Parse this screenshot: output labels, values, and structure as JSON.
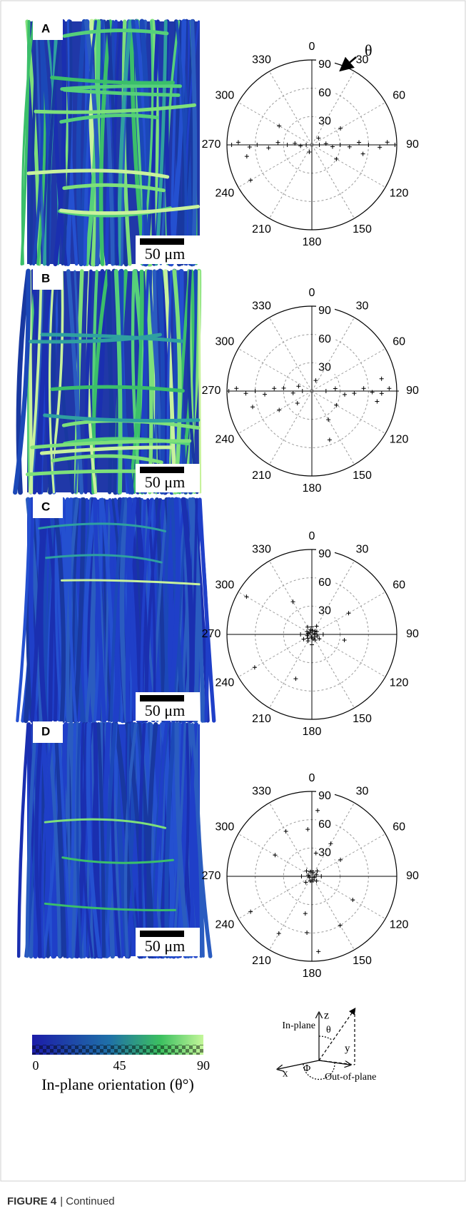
{
  "figure": {
    "panels": [
      {
        "label": "A",
        "scale_bar": "50 μm",
        "polar": {
          "type": "polar-scatter",
          "angle_ticks": [
            0,
            30,
            60,
            90,
            120,
            150,
            180,
            210,
            240,
            270,
            300,
            330
          ],
          "radial_ticks": [
            30,
            60,
            90
          ],
          "rlim": [
            0,
            90
          ],
          "points": {
            "angle": [
              90,
              88,
              92,
              90,
              87,
              93,
              90,
              95,
              85,
              90,
              270,
              272,
              268,
              270,
              266,
              274,
              270,
              275,
              265,
              270,
              240,
              100,
              260,
              300,
              60,
              120,
              45,
              200
            ],
            "radius": [
              88,
              80,
              72,
              60,
              50,
              40,
              30,
              22,
              15,
              8,
              85,
              78,
              66,
              58,
              46,
              36,
              26,
              18,
              12,
              6,
              75,
              55,
              70,
              40,
              35,
              30,
              10,
              8
            ]
          },
          "annotation": "θ"
        }
      },
      {
        "label": "B",
        "scale_bar": "50 μm",
        "polar": {
          "type": "polar-scatter",
          "angle_ticks": [
            0,
            30,
            60,
            90,
            120,
            150,
            180,
            210,
            240,
            270,
            300,
            330
          ],
          "radial_ticks": [
            30,
            60,
            90
          ],
          "rlim": [
            0,
            90
          ],
          "points": {
            "angle": [
              90,
              88,
              92,
              91,
              87,
              93,
              96,
              84,
              90,
              99,
              270,
              272,
              268,
              270,
              266,
              274,
              276,
              264,
              270,
              255,
              240,
              160,
              230,
              290,
              80,
              120,
              150,
              20
            ],
            "radius": [
              90,
              82,
              74,
              64,
              55,
              45,
              35,
              25,
              15,
              70,
              88,
              80,
              70,
              60,
              50,
              40,
              30,
              20,
              10,
              65,
              40,
              55,
              20,
              15,
              75,
              30,
              35,
              12
            ]
          }
        }
      },
      {
        "label": "C",
        "scale_bar": "50 μm",
        "polar": {
          "type": "polar-scatter",
          "angle_ticks": [
            0,
            30,
            60,
            90,
            120,
            150,
            180,
            210,
            240,
            270,
            300,
            330
          ],
          "radial_ticks": [
            30,
            60,
            90
          ],
          "rlim": [
            0,
            90
          ],
          "points": {
            "angle": [
              0,
              30,
              60,
              90,
              120,
              150,
              180,
              210,
              240,
              270,
              300,
              330,
              15,
              45,
              75,
              105,
              135,
              165,
              195,
              225,
              255,
              285,
              315,
              345,
              300,
              240,
              330,
              60,
              100,
              200
            ],
            "radius": [
              8,
              10,
              6,
              12,
              9,
              7,
              11,
              8,
              10,
              12,
              6,
              9,
              4,
              5,
              3,
              6,
              4,
              5,
              3,
              6,
              5,
              4,
              3,
              5,
              80,
              70,
              40,
              45,
              35,
              50
            ]
          }
        }
      },
      {
        "label": "D",
        "scale_bar": "50 μm",
        "polar": {
          "type": "polar-scatter",
          "angle_ticks": [
            0,
            30,
            60,
            90,
            120,
            150,
            180,
            210,
            240,
            270,
            300,
            330
          ],
          "radial_ticks": [
            30,
            60,
            90
          ],
          "rlim": [
            0,
            90
          ],
          "points": {
            "angle": [
              0,
              45,
              90,
              135,
              180,
              225,
              270,
              315,
              20,
              70,
              110,
              160,
              200,
              250,
              290,
              340,
              5,
              185,
              175,
              355,
              150,
              210,
              330,
              30,
              240,
              300,
              120,
              60,
              190,
              10
            ],
            "radius": [
              6,
              8,
              10,
              7,
              6,
              9,
              11,
              8,
              4,
              5,
              3,
              4,
              5,
              3,
              4,
              5,
              70,
              60,
              80,
              50,
              60,
              70,
              55,
              40,
              75,
              45,
              50,
              35,
              40,
              25
            ]
          }
        }
      }
    ],
    "colorbar": {
      "ticks": [
        0,
        45,
        90
      ],
      "label": "In-plane orientation (θ°)"
    },
    "axes_diagram": {
      "z": "z",
      "y": "y",
      "x": "x",
      "theta": "θ",
      "phi": "Φ",
      "in_plane": "In-plane",
      "out_of_plane": "Out-of-plane"
    },
    "caption": {
      "label": "FIGURE 4",
      "text": "| Continued"
    }
  }
}
